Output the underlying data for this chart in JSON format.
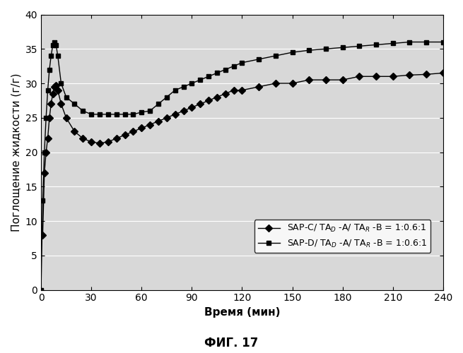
{
  "title": "ФИГ. 17",
  "xlabel": "Время (мин)",
  "ylabel": "Поглощение жидкости (г/г)",
  "xlim": [
    0,
    240
  ],
  "ylim": [
    0,
    40
  ],
  "xticks": [
    0,
    30,
    60,
    90,
    120,
    150,
    180,
    210,
    240
  ],
  "yticks": [
    0,
    5,
    10,
    15,
    20,
    25,
    30,
    35,
    40
  ],
  "series_C": {
    "x": [
      1,
      2,
      3,
      4,
      5,
      6,
      7,
      8,
      9,
      10,
      12,
      15,
      20,
      25,
      30,
      35,
      40,
      45,
      50,
      55,
      60,
      65,
      70,
      75,
      80,
      85,
      90,
      95,
      100,
      105,
      110,
      115,
      120,
      130,
      140,
      150,
      160,
      170,
      180,
      190,
      200,
      210,
      220,
      230,
      240
    ],
    "y": [
      8,
      17,
      20,
      22,
      25,
      27,
      28.5,
      29.5,
      29.7,
      29.0,
      27.0,
      25.0,
      23.0,
      22.0,
      21.5,
      21.3,
      21.5,
      22.0,
      22.5,
      23.0,
      23.5,
      24.0,
      24.5,
      25.0,
      25.5,
      26.0,
      26.5,
      27.0,
      27.5,
      28.0,
      28.5,
      29.0,
      29.0,
      29.5,
      30.0,
      30.0,
      30.5,
      30.5,
      30.5,
      31.0,
      31.0,
      31.0,
      31.2,
      31.3,
      31.5
    ],
    "color": "#000000",
    "marker": "D",
    "markersize": 5,
    "label": "SAP-C/ TA$_D$ -A/ TA$_R$ -B = 1:0.6:1"
  },
  "series_D": {
    "x": [
      0,
      1,
      2,
      3,
      4,
      5,
      6,
      7,
      8,
      9,
      10,
      12,
      15,
      20,
      25,
      30,
      35,
      40,
      45,
      50,
      55,
      60,
      65,
      70,
      75,
      80,
      85,
      90,
      95,
      100,
      105,
      110,
      115,
      120,
      130,
      140,
      150,
      160,
      170,
      180,
      190,
      200,
      210,
      220,
      230,
      240
    ],
    "y": [
      0,
      13,
      20,
      25,
      29,
      32,
      34,
      35.5,
      36,
      35.5,
      34.0,
      30.0,
      28.0,
      27.0,
      26.0,
      25.5,
      25.5,
      25.5,
      25.5,
      25.5,
      25.5,
      25.8,
      26.0,
      27.0,
      28.0,
      29.0,
      29.5,
      30.0,
      30.5,
      31.0,
      31.5,
      32.0,
      32.5,
      33.0,
      33.5,
      34.0,
      34.5,
      34.8,
      35.0,
      35.2,
      35.4,
      35.6,
      35.8,
      36.0,
      36.0,
      36.0
    ],
    "color": "#000000",
    "marker": "s",
    "markersize": 5,
    "label": "SAP-D/ TA$_D$ -A/ TA$_R$ -B = 1:0.6:1"
  },
  "plot_bg_color": "#d8d8d8",
  "fig_bg_color": "#ffffff",
  "grid_color": "#ffffff",
  "legend_fontsize": 9,
  "axis_fontsize": 11,
  "title_fontsize": 12,
  "tick_fontsize": 10
}
